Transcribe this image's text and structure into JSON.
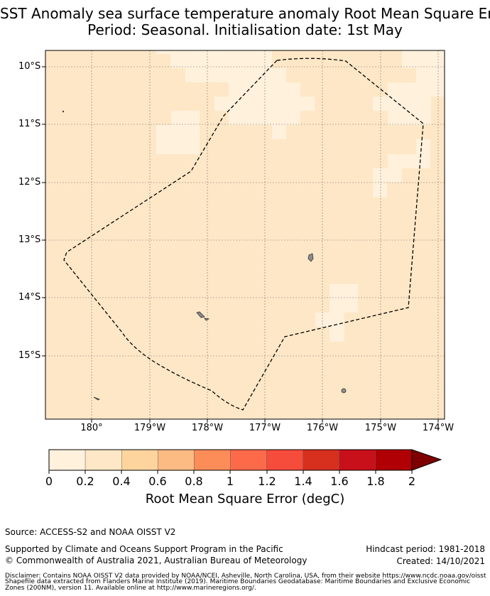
{
  "title_line1": "SST Anomaly sea surface temperature anomaly Root Mean Square Error (RMSE)",
  "title_line2": "Period: Seasonal. Initialisation date: 1st May",
  "map": {
    "lat_labels": [
      "10°S",
      "11°S",
      "12°S",
      "13°S",
      "14°S",
      "15°S"
    ],
    "lon_labels": [
      "180°",
      "179°W",
      "178°W",
      "177°W",
      "176°W",
      "175°W",
      "174°W"
    ],
    "field_color": "#fee7c6",
    "low_color": "#fff1dc",
    "boundary_style": "dashed"
  },
  "colorbar": {
    "label": "Root Mean Square Error (degC)",
    "ticks": [
      "0",
      "0.2",
      "0.4",
      "0.6",
      "0.8",
      "1",
      "1.2",
      "1.4",
      "1.6",
      "1.8",
      "2"
    ],
    "colors": [
      "#fff1dc",
      "#fee7c6",
      "#fdd49e",
      "#fdbb84",
      "#fc8d59",
      "#fd6a4a",
      "#f54c3b",
      "#d7301f",
      "#c8101a",
      "#b10005",
      "#7f0000"
    ],
    "extend": "max"
  },
  "footer": {
    "source": "Source: ACCESS-S2 and NOAA OISST V2",
    "supported": "Supported by Climate and Oceans Support Program in the Pacific",
    "copyright": "© Commonwealth of Australia 2021, Australian Bureau of Meteorology",
    "hindcast": "Hindcast period: 1981-2018",
    "created": "Created: 14/10/2021",
    "disclaimer1": "Disclaimer: Contains NOAA OISST V2 data provided by NOAA/NCEI, Asheville, North Carolina, USA, from their website https://www.ncdc.noaa.gov/oisst",
    "disclaimer2": "Shapefile data extracted from Flanders Marine Institute (2019). Maritime Boundaries Geodatabase: Maritime Boundaries and Exclusive Economic",
    "disclaimer3": "Zones (200NM), version 11. Available online at http://www.marineregions.org/."
  }
}
